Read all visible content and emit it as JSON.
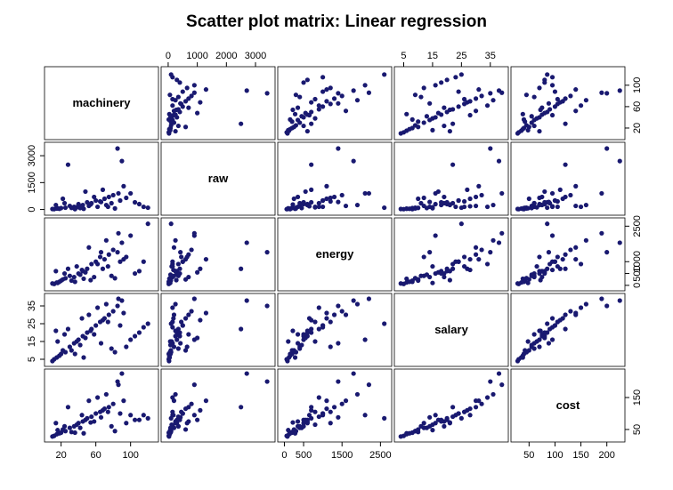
{
  "chart_data": {
    "type": "scatter_matrix",
    "title": "Scatter plot matrix: Linear regression",
    "color": "#191970",
    "variables": [
      {
        "name": "machinery",
        "lim": [
          5,
          128
        ],
        "xticks": [
          20,
          60,
          100
        ],
        "yticks": [
          20,
          60,
          100
        ],
        "values": [
          12,
          15,
          20,
          25,
          18,
          30,
          35,
          40,
          45,
          50,
          55,
          60,
          65,
          70,
          75,
          80,
          85,
          90,
          28,
          100,
          110,
          120,
          22,
          38,
          42,
          48,
          52,
          58,
          62,
          68,
          72,
          78,
          82,
          88,
          95,
          105,
          115,
          10,
          32,
          36,
          24,
          16,
          44,
          54,
          66,
          74,
          86,
          92,
          14,
          46
        ]
      },
      {
        "name": "raw",
        "lim": [
          -120,
          3550
        ],
        "xticks": [
          0,
          1000,
          2000,
          3000
        ],
        "yticks": [
          0,
          1500,
          3000
        ],
        "values": [
          20,
          50,
          80,
          100,
          40,
          200,
          150,
          300,
          250,
          400,
          350,
          500,
          450,
          600,
          700,
          800,
          3400,
          2700,
          2500,
          900,
          300,
          100,
          600,
          120,
          80,
          1000,
          200,
          700,
          150,
          1100,
          250,
          350,
          60,
          500,
          650,
          400,
          150,
          30,
          90,
          20,
          350,
          70,
          180,
          280,
          420,
          150,
          900,
          1300,
          250,
          40
        ]
      },
      {
        "name": "energy",
        "lim": [
          -80,
          2700
        ],
        "xticks": [
          0,
          500,
          1500,
          2500
        ],
        "yticks": [
          0,
          500,
          1000,
          2500
        ],
        "values": [
          60,
          120,
          200,
          300,
          150,
          400,
          350,
          500,
          600,
          700,
          900,
          1000,
          1200,
          1100,
          1300,
          1500,
          1400,
          1800,
          700,
          2100,
          600,
          2600,
          250,
          800,
          450,
          550,
          1600,
          350,
          900,
          700,
          1900,
          400,
          300,
          1000,
          1200,
          500,
          1000,
          80,
          200,
          150,
          500,
          100,
          650,
          220,
          1400,
          800,
          2200,
          1100,
          600,
          280
        ]
      },
      {
        "name": "salary",
        "lim": [
          3,
          40
        ],
        "xticks": [
          5,
          15,
          25,
          35
        ],
        "yticks": [
          5,
          15,
          25,
          35
        ],
        "values": [
          5,
          6,
          8,
          9,
          7,
          12,
          14,
          16,
          18,
          20,
          22,
          24,
          26,
          28,
          30,
          32,
          35,
          38,
          22,
          16,
          20,
          25,
          10,
          15,
          13,
          17,
          30,
          19,
          34,
          27,
          36,
          11,
          9,
          24,
          12,
          18,
          23,
          4,
          10,
          8,
          19,
          15,
          28,
          21,
          14,
          26,
          39,
          31,
          21,
          6
        ]
      },
      {
        "name": "cost",
        "lim": [
          22,
          228
        ],
        "xticks": [
          50,
          100,
          150,
          200
        ],
        "yticks": [
          50,
          150
        ],
        "values": [
          30,
          35,
          40,
          45,
          38,
          55,
          60,
          70,
          75,
          85,
          90,
          100,
          105,
          115,
          120,
          130,
          200,
          225,
          120,
          95,
          80,
          85,
          50,
          65,
          55,
          80,
          140,
          75,
          150,
          110,
          160,
          60,
          45,
          100,
          70,
          80,
          95,
          28,
          42,
          40,
          60,
          48,
          95,
          72,
          88,
          105,
          190,
          140,
          70,
          38
        ]
      }
    ]
  }
}
